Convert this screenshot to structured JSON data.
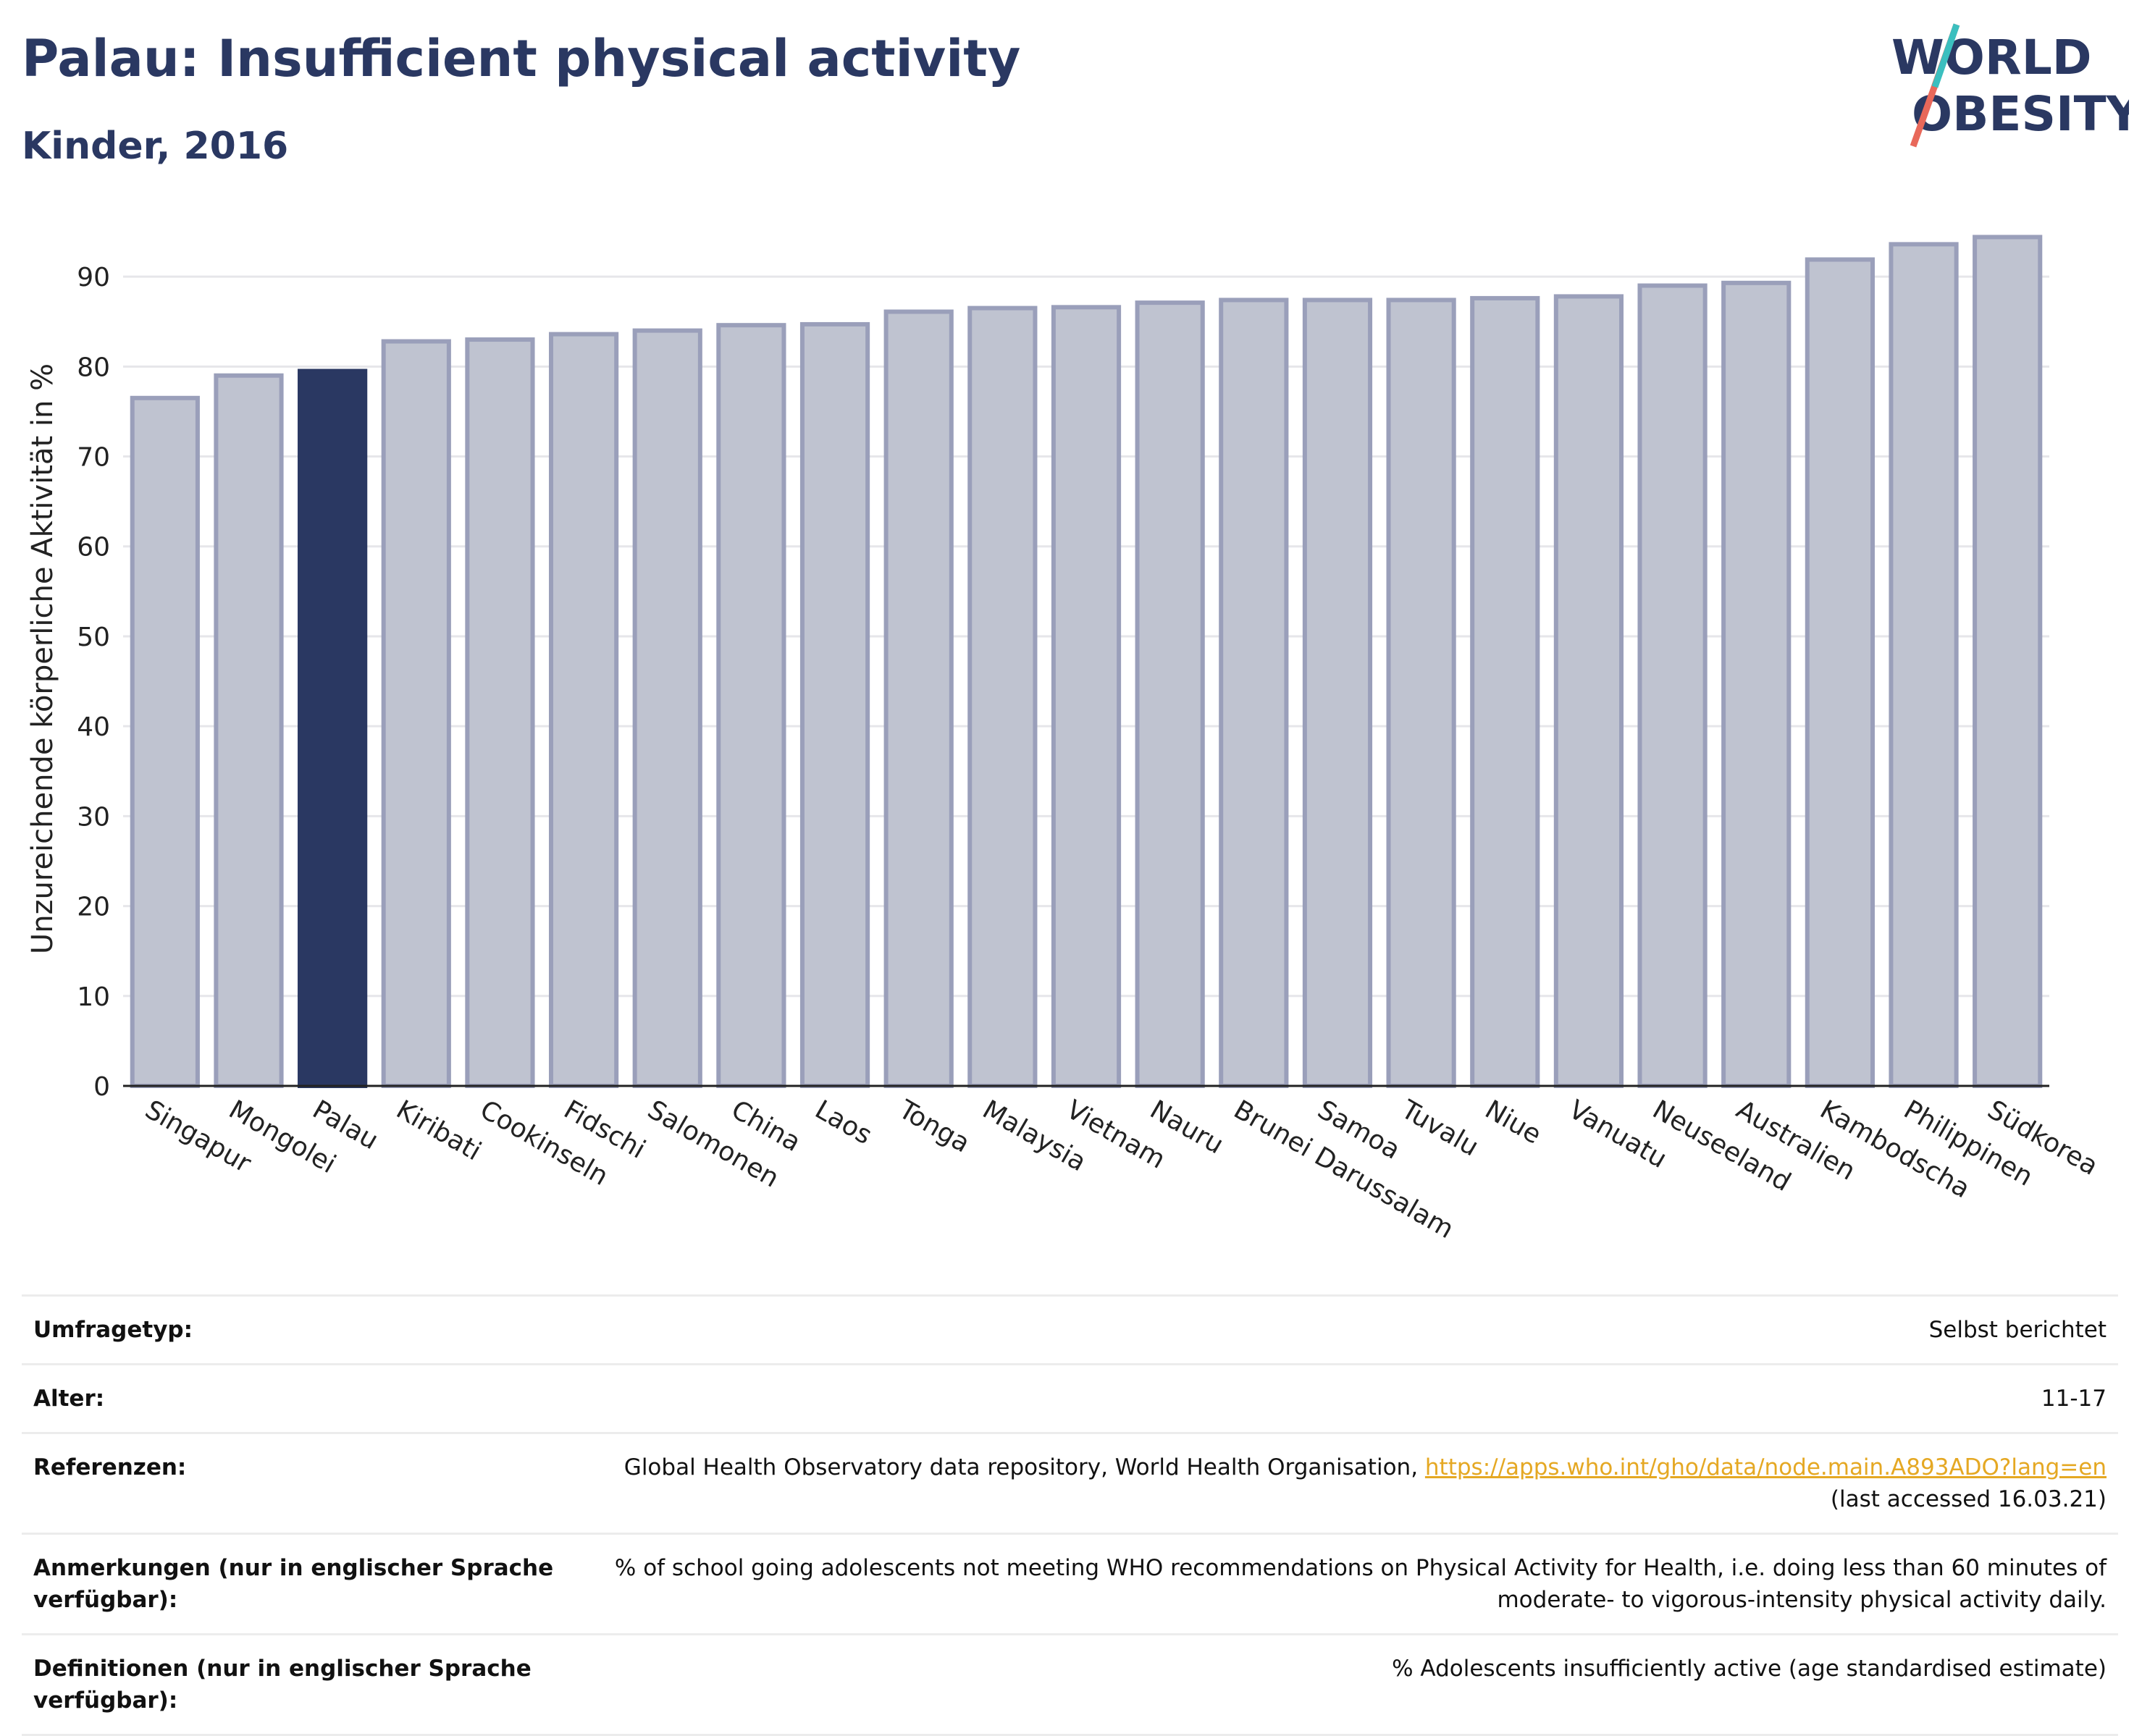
{
  "header": {
    "title": "Palau: Insufficient physical activity",
    "subtitle": "Kinder, 2016"
  },
  "logo": {
    "line1": "WORLD",
    "line2": "OBESITY"
  },
  "colors": {
    "highlight": "#2a3862",
    "bar": "#bfc3d0",
    "bar_border": "#9a9fba",
    "accent_teal": "#3bbfbf",
    "accent_red": "#e8685a",
    "link": "#e5a823"
  },
  "chart_data": {
    "type": "bar",
    "title": "Palau: Insufficient physical activity",
    "subtitle": "Kinder, 2016",
    "xlabel": "",
    "ylabel": "Unzureichende körperliche Aktivität in %",
    "ylim": [
      0,
      95
    ],
    "yticks": [
      0,
      10,
      20,
      30,
      40,
      50,
      60,
      70,
      80,
      90
    ],
    "grid": true,
    "highlight": "Palau",
    "categories": [
      "Singapur",
      "Mongolei",
      "Palau",
      "Kiribati",
      "Cookinseln",
      "Fidschi",
      "Salomonen",
      "China",
      "Laos",
      "Tonga",
      "Malaysia",
      "Vietnam",
      "Nauru",
      "Brunei Darussalam",
      "Samoa",
      "Tuvalu",
      "Niue",
      "Vanuatu",
      "Neuseeland",
      "Australien",
      "Kambodscha",
      "Philippinen",
      "Südkorea"
    ],
    "values": [
      76.5,
      79.0,
      79.5,
      82.8,
      83.0,
      83.6,
      84.0,
      84.6,
      84.7,
      86.1,
      86.5,
      86.6,
      87.1,
      87.4,
      87.4,
      87.4,
      87.6,
      87.8,
      89.0,
      89.3,
      91.9,
      93.6,
      94.4
    ]
  },
  "info_table": [
    {
      "label": "Umfragetyp:",
      "value": "Selbst berichtet"
    },
    {
      "label": "Alter:",
      "value": "11-17"
    },
    {
      "label": "Referenzen:",
      "value_prefix": "Global Health Observatory data repository, World Health Organisation, ",
      "link": "https://apps.who.int/gho/data/node.main.A893ADO?lang=en",
      "value_suffix": "(last accessed 16.03.21)"
    },
    {
      "label": "Anmerkungen (nur in englischer Sprache verfügbar):",
      "value": "% of school going adolescents not meeting WHO recommendations on Physical Activity for Health, i.e. doing less than 60 minutes of moderate- to vigorous-intensity physical activity daily."
    },
    {
      "label": "Definitionen (nur in englischer Sprache verfügbar):",
      "value": "% Adolescents insufficiently active (age standardised estimate)"
    }
  ]
}
